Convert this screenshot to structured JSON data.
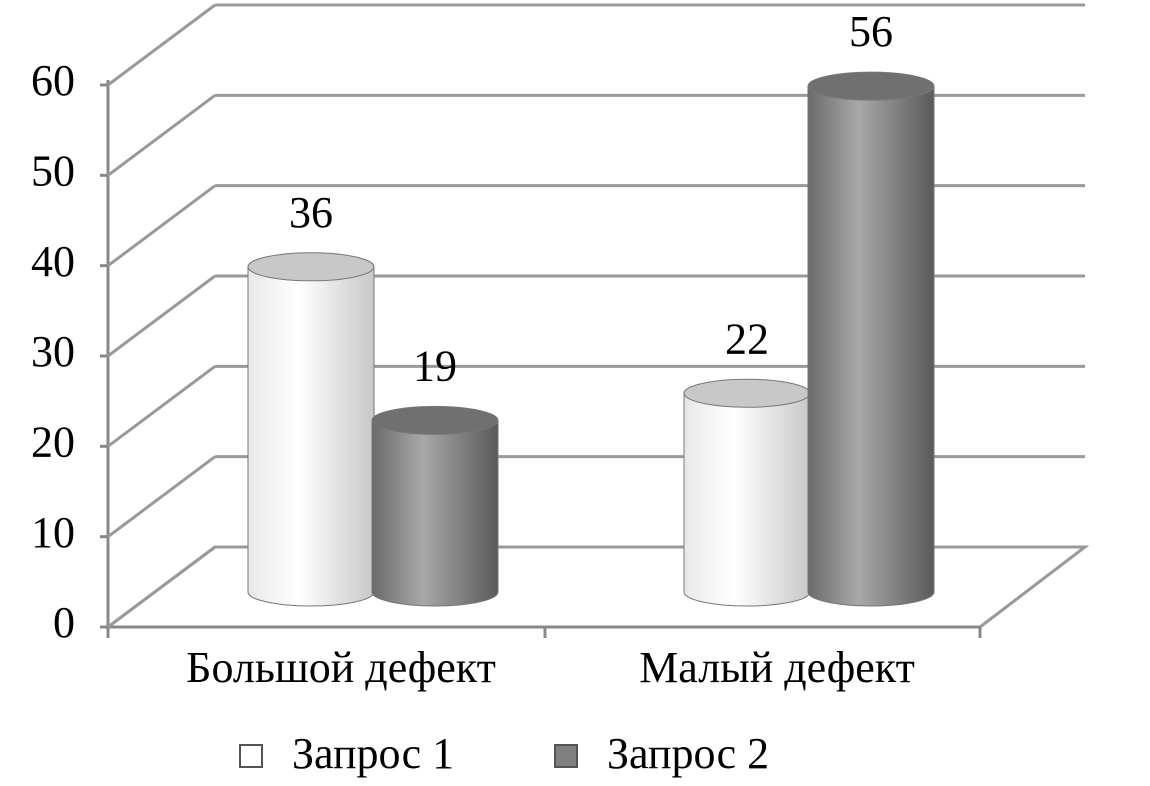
{
  "chart_data": {
    "type": "bar3d",
    "categories": [
      "Большой дефект",
      "Малый дефект"
    ],
    "series": [
      {
        "name": "Запрос 1",
        "color": "#ffffff",
        "values": [
          36,
          22
        ]
      },
      {
        "name": "Запрос 2",
        "color": "#808080",
        "values": [
          19,
          56
        ]
      }
    ],
    "ylim": [
      0,
      60
    ],
    "yticks": [
      0,
      10,
      20,
      30,
      40,
      50,
      60
    ],
    "grid": true,
    "legend": "bottom"
  }
}
